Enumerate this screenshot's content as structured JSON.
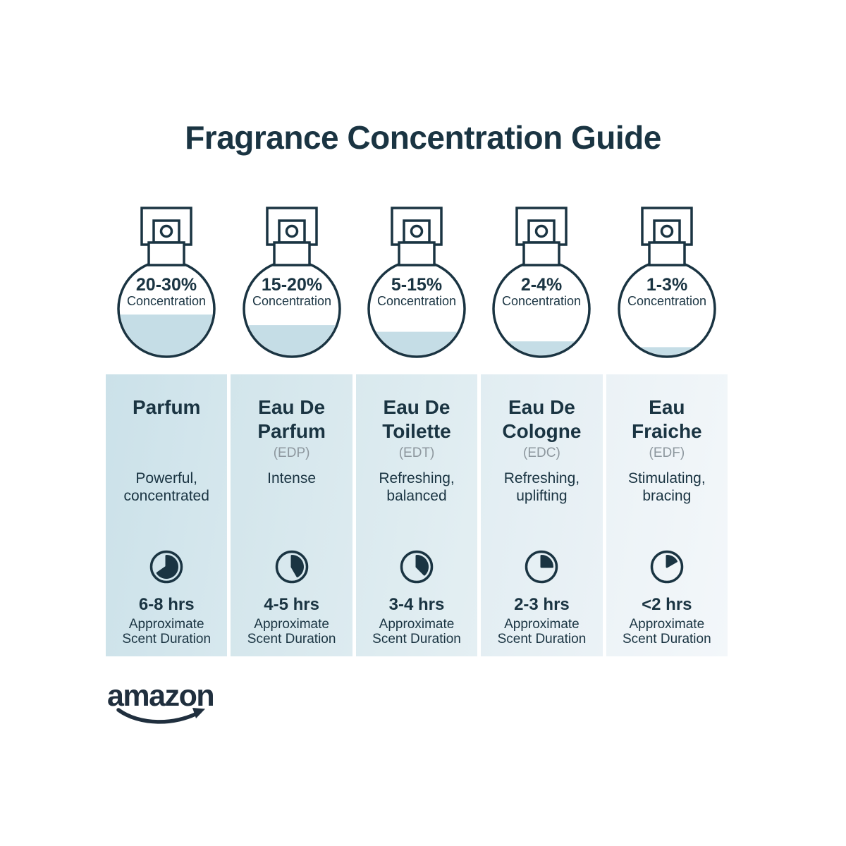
{
  "title": "Fragrance Concentration Guide",
  "footer": {
    "brand_logo_text": "amazon"
  },
  "columns": [
    {
      "concentration": "20-30%",
      "concentration_label": "Concentration",
      "fill_percent": 44,
      "name": "Parfum",
      "abbr": "",
      "description": "Powerful,\nconcentrated",
      "clock_degrees": 235,
      "duration": "6-8 hrs",
      "duration_label": "Approximate\nScent Duration"
    },
    {
      "concentration": "15-20%",
      "concentration_label": "Concentration",
      "fill_percent": 33,
      "name": "Eau De\nParfum",
      "abbr": "(EDP)",
      "description": "Intense",
      "clock_degrees": 150,
      "duration": "4-5 hrs",
      "duration_label": "Approximate\nScent Duration"
    },
    {
      "concentration": "5-15%",
      "concentration_label": "Concentration",
      "fill_percent": 26,
      "name": "Eau De\nToilette",
      "abbr": "(EDT)",
      "description": "Refreshing,\nbalanced",
      "clock_degrees": 135,
      "duration": "3-4 hrs",
      "duration_label": "Approximate\nScent Duration"
    },
    {
      "concentration": "2-4%",
      "concentration_label": "Concentration",
      "fill_percent": 16,
      "name": "Eau De\nCologne",
      "abbr": "(EDC)",
      "description": "Refreshing,\nuplifting",
      "clock_degrees": 90,
      "duration": "2-3 hrs",
      "duration_label": "Approximate\nScent Duration"
    },
    {
      "concentration": "1-3%",
      "concentration_label": "Concentration",
      "fill_percent": 10,
      "name": "Eau\nFraiche",
      "abbr": "(EDF)",
      "description": "Stimulating,\nbracing",
      "clock_degrees": 60,
      "duration": "<2 hrs",
      "duration_label": "Approximate\nScent Duration"
    }
  ],
  "colors": {
    "navy": "#1a3442",
    "abbr_gray": "#8d979e",
    "liquid_blue": "#c5dde6",
    "logo_navy": "#202f3e",
    "column_backgrounds": [
      [
        "#cbe1e9",
        "#d7e8ee"
      ],
      [
        "#d2e5eb",
        "#ddebf0"
      ],
      [
        "#d9e9ee",
        "#e4eff3"
      ],
      [
        "#e1edf2",
        "#ebf2f6"
      ],
      [
        "#ebf2f6",
        "#f3f7fa"
      ]
    ]
  }
}
